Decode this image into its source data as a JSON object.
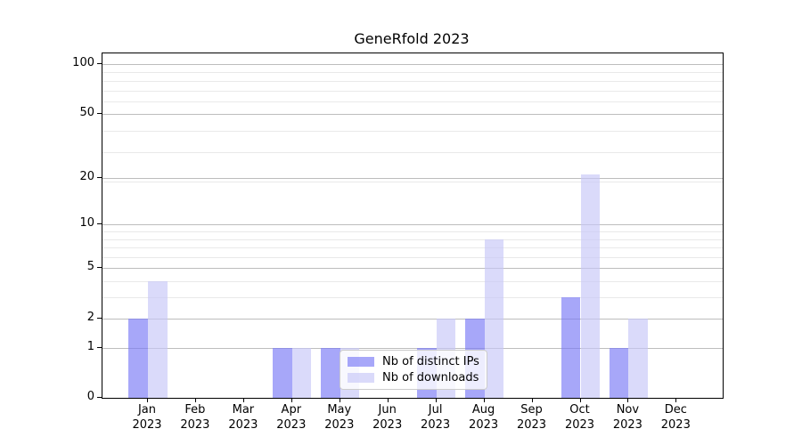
{
  "title": "GeneRfold 2023",
  "colors": {
    "bar_dark": "rgba(121,121,246,0.66)",
    "bar_light": "rgba(199,199,247,0.66)",
    "grid_major": "#bdbdbd",
    "grid_minor": "#e9e9e9",
    "axis": "#000000",
    "legend_border": "#cccccc"
  },
  "legend": {
    "entries": [
      {
        "label": "Nb of distinct IPs",
        "swatch": "rgba(121,121,246,0.66)"
      },
      {
        "label": "Nb of downloads",
        "swatch": "rgba(199,199,247,0.66)"
      }
    ]
  },
  "chart_data": {
    "type": "bar",
    "title": "GeneRfold 2023",
    "categories": [
      "Jan 2023",
      "Feb 2023",
      "Mar 2023",
      "Apr 2023",
      "May 2023",
      "Jun 2023",
      "Jul 2023",
      "Aug 2023",
      "Sep 2023",
      "Oct 2023",
      "Nov 2023",
      "Dec 2023"
    ],
    "series": [
      {
        "name": "Nb of distinct IPs",
        "color": "rgba(121,121,246,0.66)",
        "values": [
          2,
          0,
          0,
          1,
          1,
          0,
          1,
          2,
          0,
          3,
          1,
          0
        ]
      },
      {
        "name": "Nb of downloads",
        "color": "rgba(199,199,247,0.66)",
        "values": [
          4,
          0,
          0,
          1,
          1,
          0,
          2,
          8,
          0,
          21,
          2,
          0
        ]
      }
    ],
    "xlabel": "",
    "ylabel": "",
    "yscale": "log1p",
    "yticks_major": [
      0,
      1,
      2,
      5,
      10,
      20,
      50,
      100
    ],
    "yticks_minor": [
      3,
      4,
      6,
      7,
      8,
      9,
      19,
      29,
      39,
      59,
      69,
      79,
      89
    ],
    "ylim": [
      0,
      118
    ],
    "grid": true,
    "legend_position": "lower center"
  }
}
